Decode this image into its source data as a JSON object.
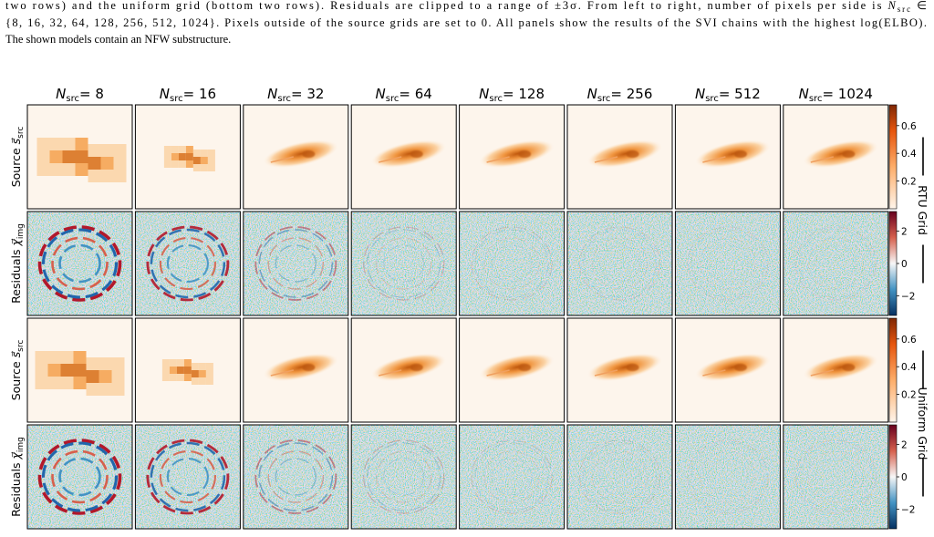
{
  "caption": {
    "line1": "two rows) and the uniform grid (bottom two rows). Residuals are clipped to a range of ±3σ. From left to right, number of pixels per side is ",
    "line1_symbol": "N",
    "line1_sub": "src",
    "line1_end": " ∈",
    "line2": "{8, 16, 32, 64, 128, 256, 512, 1024}. Pixels outside of the source grids are set to 0. All panels show the results of the SVI chains with the highest log(ELBO).",
    "line3": "The shown models contain an NFW substructure."
  },
  "figure": {
    "header_symbol": "N",
    "header_sub": "src",
    "header_eq": "= ",
    "columns": [
      8,
      16,
      32,
      64,
      128,
      256,
      512,
      1024
    ],
    "rows": [
      {
        "kind": "source",
        "label": "Source ",
        "symbol": "s⃗",
        "sub": "src"
      },
      {
        "kind": "residual",
        "label": "Residuals ",
        "symbol": "χ⃗",
        "sub": "img"
      },
      {
        "kind": "source",
        "label": "Source ",
        "symbol": "s⃗",
        "sub": "src"
      },
      {
        "kind": "residual",
        "label": "Residuals ",
        "symbol": "χ⃗",
        "sub": "img"
      }
    ],
    "colorbars": {
      "source": {
        "lim": [
          0,
          0.75
        ],
        "ticks": [
          0.2,
          0.4,
          0.6
        ]
      },
      "residual": {
        "lim": [
          -3.2,
          3.2
        ],
        "ticks": [
          {
            "value": -2,
            "label": "−2"
          },
          0,
          2
        ]
      }
    },
    "group_labels": [
      "RTU Grid",
      "Uniform Grid"
    ]
  }
}
